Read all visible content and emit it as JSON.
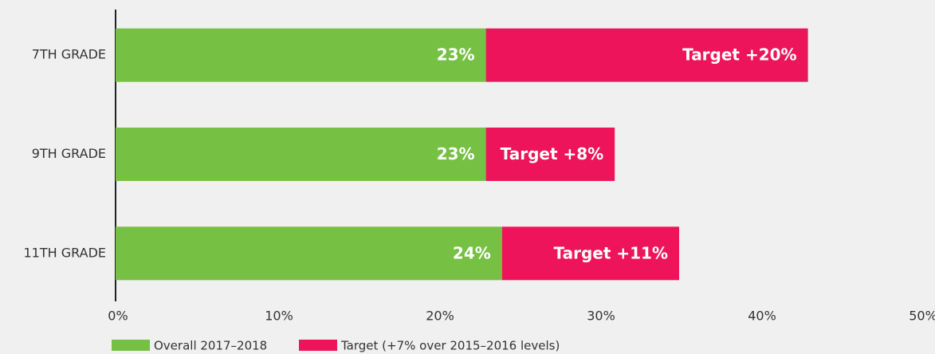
{
  "chart_data": {
    "type": "stacked-barh",
    "categories": [
      "7TH GRADE",
      "9TH GRADE",
      "11TH GRADE"
    ],
    "series": [
      {
        "name": "Overall 2017–2018",
        "color": "#76c043",
        "values": [
          23,
          23,
          24
        ],
        "value_labels": [
          "23%",
          "23%",
          "24%"
        ]
      },
      {
        "name": "Target (+7% over 2015–2016 levels)",
        "color": "#ed145b",
        "values": [
          20,
          8,
          11
        ],
        "value_labels": [
          "Target +20%",
          "Target +8%",
          "Target +11%"
        ]
      }
    ],
    "xlim": [
      0,
      50
    ],
    "xticks": [
      {
        "value": 0,
        "label": "0%"
      },
      {
        "value": 10,
        "label": "10%"
      },
      {
        "value": 20,
        "label": "20%"
      },
      {
        "value": 30,
        "label": "30%"
      },
      {
        "value": 40,
        "label": "40%"
      },
      {
        "value": 50,
        "label": "50%"
      }
    ]
  }
}
